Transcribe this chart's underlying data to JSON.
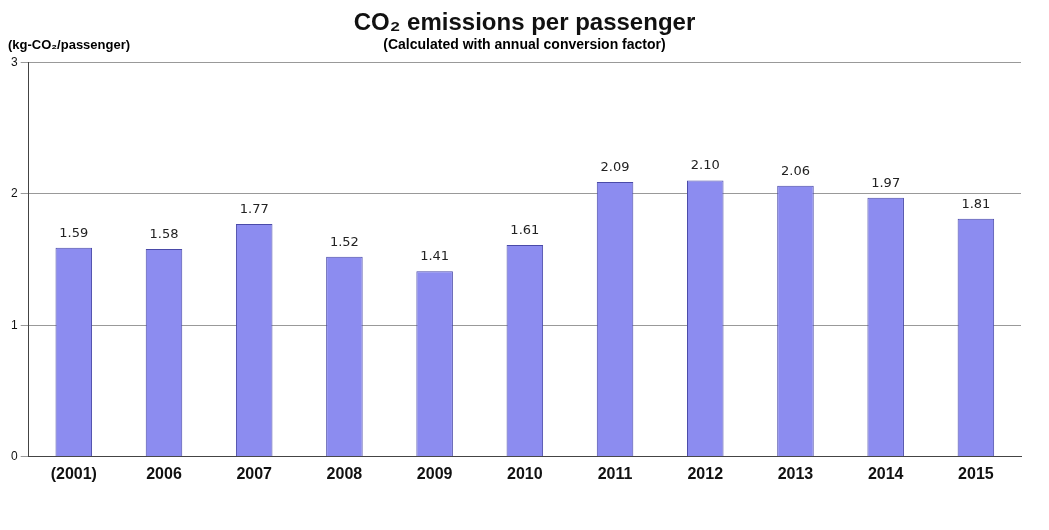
{
  "chart_data": {
    "type": "bar",
    "title": "CO₂ emissions per passenger",
    "subtitle": "(Calculated with annual conversion factor)",
    "ylabel": "(kg-CO₂/passenger)",
    "categories": [
      "(2001)",
      "2006",
      "2007",
      "2008",
      "2009",
      "2010",
      "2011",
      "2012",
      "2013",
      "2014",
      "2015"
    ],
    "values": [
      1.59,
      1.58,
      1.77,
      1.52,
      1.41,
      1.61,
      2.09,
      2.1,
      2.06,
      1.97,
      1.81
    ],
    "value_labels": [
      "1.59",
      "1.58",
      "1.77",
      "1.52",
      "1.41",
      "1.61",
      "2.09",
      "2.10",
      "2.06",
      "1.97",
      "1.81"
    ],
    "color": "#8c8cf0",
    "ylim": [
      0,
      3
    ],
    "yticks": [
      0,
      1,
      2,
      3
    ],
    "grid": "y",
    "legend": false
  }
}
